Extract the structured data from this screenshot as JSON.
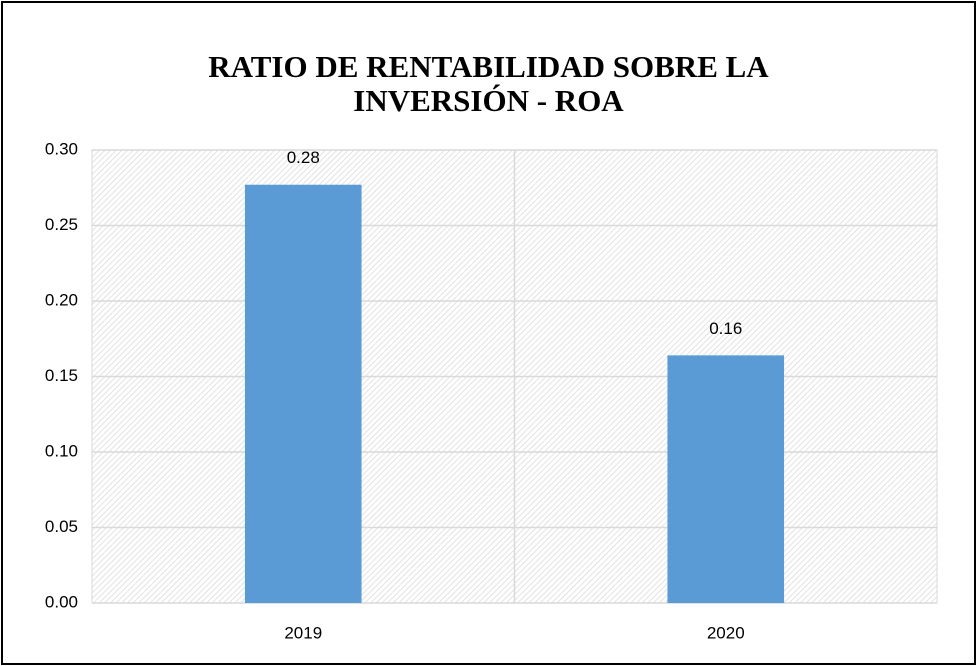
{
  "chart_data": {
    "type": "bar",
    "title": "RATIO DE RENTABILIDAD SOBRE LA INVERSIÓN - ROA",
    "categories": [
      "2019",
      "2020"
    ],
    "values": [
      0.277,
      0.164
    ],
    "value_labels": [
      "0.28",
      "0.16"
    ],
    "color": "#5b9bd5",
    "ylim": [
      0,
      0.3
    ],
    "yticks": [
      {
        "value": 0,
        "label": "0.00"
      },
      0.05,
      {
        "value": 0.1,
        "label": "0.10"
      },
      0.15,
      {
        "value": 0.2,
        "label": "0.20"
      },
      0.25,
      {
        "value": 0.3,
        "label": "0.30"
      }
    ],
    "grid": true
  }
}
